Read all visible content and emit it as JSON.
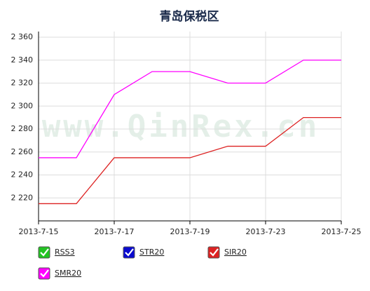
{
  "chart_data": {
    "type": "line",
    "title": "青岛保税区",
    "watermark": "www.QinRex.cn",
    "categories": [
      "2013-7-15",
      null,
      "2013-7-17",
      null,
      "2013-7-19",
      null,
      "2013-7-23",
      null,
      "2013-7-25"
    ],
    "series": [
      {
        "name": "RSS3",
        "color": "#22c322",
        "values": [
          null,
          null,
          null,
          null,
          null,
          null,
          null,
          null,
          null
        ]
      },
      {
        "name": "STR20",
        "color": "#0a0ad0",
        "values": [
          null,
          null,
          null,
          null,
          null,
          null,
          null,
          null,
          null
        ]
      },
      {
        "name": "SIR20",
        "color": "#dd2222",
        "values": [
          2215,
          2215,
          2255,
          2255,
          2255,
          2265,
          2265,
          2290,
          2290
        ]
      },
      {
        "name": "SMR20",
        "color": "#ff00ff",
        "values": [
          2255,
          2255,
          2310,
          2330,
          2330,
          2320,
          2320,
          2340,
          2340
        ]
      }
    ],
    "ylim": [
      2200,
      2360
    ],
    "yticks": [
      {
        "value": 2220,
        "label": "2 220"
      },
      {
        "value": 2240,
        "label": "2 240"
      },
      {
        "value": 2260,
        "label": "2 260"
      },
      {
        "value": 2280,
        "label": "2 280"
      },
      {
        "value": 2300,
        "label": "2 300"
      },
      {
        "value": 2320,
        "label": "2 320"
      },
      {
        "value": 2340,
        "label": "2 340"
      },
      {
        "value": 2360,
        "label": "2 360"
      }
    ],
    "grid": true
  }
}
